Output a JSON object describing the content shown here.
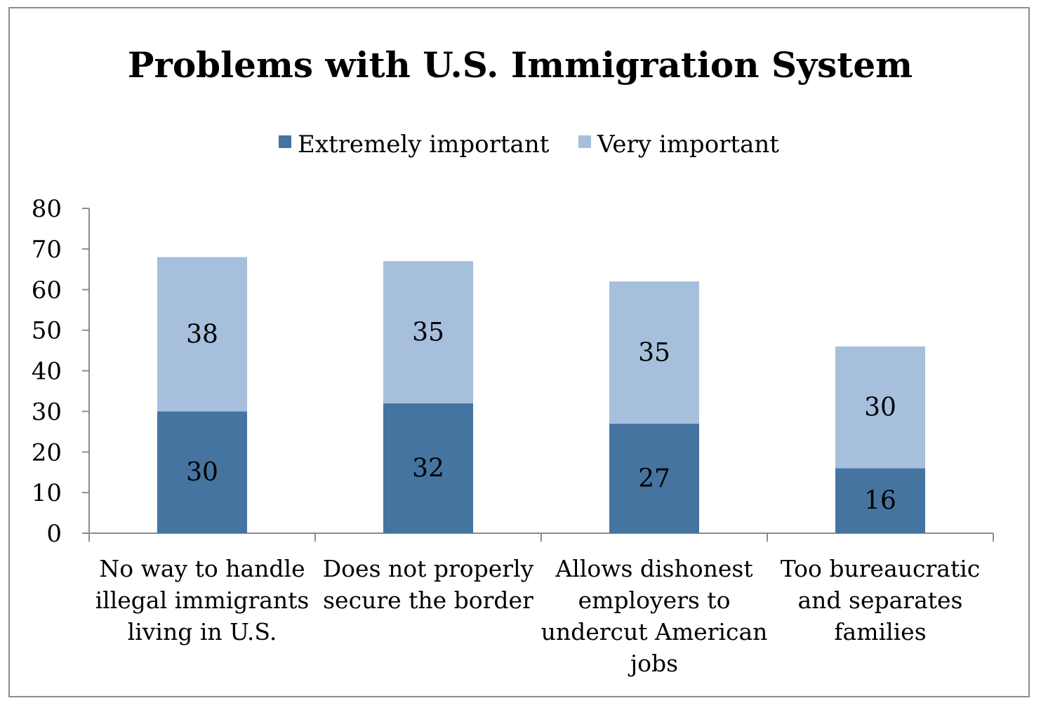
{
  "chart_data": {
    "type": "bar",
    "stacked": true,
    "title": "Problems with U.S. Immigration System",
    "categories": [
      [
        "No way to handle",
        "illegal immigrants",
        "living in U.S."
      ],
      [
        "Does not properly",
        "secure the border"
      ],
      [
        "Allows dishonest",
        "employers to",
        "undercut American",
        "jobs"
      ],
      [
        "Too bureaucratic",
        "and separates",
        "families"
      ]
    ],
    "series": [
      {
        "name": "Extremely important",
        "values": [
          30,
          32,
          27,
          16
        ],
        "color": "#4674a0"
      },
      {
        "name": "Very important",
        "values": [
          38,
          35,
          35,
          30
        ],
        "color": "#a6bfdc"
      }
    ],
    "ylim": [
      0,
      80
    ],
    "yticks": [
      0,
      10,
      20,
      30,
      40,
      50,
      60,
      70,
      80
    ],
    "grid": false,
    "legend": "top-center",
    "data_labels": true
  }
}
